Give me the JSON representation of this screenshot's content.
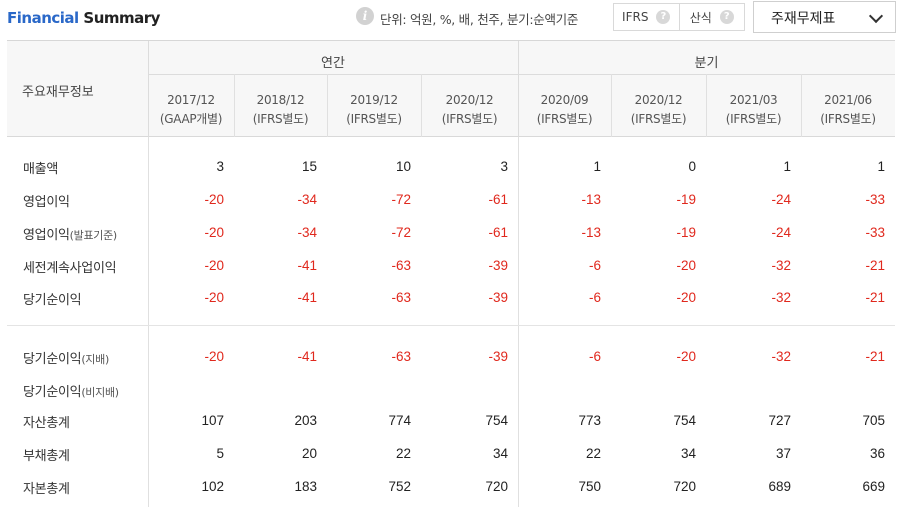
{
  "header": {
    "title_part1": "Financial",
    "title_part2": " Summary",
    "info_icon": "info-icon",
    "unit_text": "단위: 억원, %, 배, 천주, 분기:순액기준",
    "toggle": [
      {
        "label": "IFRS",
        "help": "?"
      },
      {
        "label": "산식",
        "help": "?"
      }
    ],
    "dropdown_label": "주재무제표"
  },
  "table": {
    "corner_label": "주요재무정보",
    "group_annual": "연간",
    "group_quarter": "분기",
    "columns": [
      {
        "date": "2017/12",
        "std": "(GAAP개별)"
      },
      {
        "date": "2018/12",
        "std": "(IFRS별도)"
      },
      {
        "date": "2019/12",
        "std": "(IFRS별도)"
      },
      {
        "date": "2020/12",
        "std": "(IFRS별도)"
      },
      {
        "date": "2020/09",
        "std": "(IFRS별도)"
      },
      {
        "date": "2020/12",
        "std": "(IFRS별도)"
      },
      {
        "date": "2021/03",
        "std": "(IFRS별도)"
      },
      {
        "date": "2021/06",
        "std": "(IFRS별도)"
      }
    ],
    "rows": [
      {
        "label": "매출액",
        "sub": "",
        "values": [
          "3",
          "15",
          "10",
          "3",
          "1",
          "0",
          "1",
          "1"
        ]
      },
      {
        "label": "영업이익",
        "sub": "",
        "values": [
          "-20",
          "-34",
          "-72",
          "-61",
          "-13",
          "-19",
          "-24",
          "-33"
        ]
      },
      {
        "label": "영업이익",
        "sub": "(발표기준)",
        "values": [
          "-20",
          "-34",
          "-72",
          "-61",
          "-13",
          "-19",
          "-24",
          "-33"
        ]
      },
      {
        "label": "세전계속사업이익",
        "sub": "",
        "values": [
          "-20",
          "-41",
          "-63",
          "-39",
          "-6",
          "-20",
          "-32",
          "-21"
        ]
      },
      {
        "label": "당기순이익",
        "sub": "",
        "values": [
          "-20",
          "-41",
          "-63",
          "-39",
          "-6",
          "-20",
          "-32",
          "-21"
        ]
      },
      {
        "label": "당기순이익",
        "sub": "(지배)",
        "values": [
          "-20",
          "-41",
          "-63",
          "-39",
          "-6",
          "-20",
          "-32",
          "-21"
        ]
      },
      {
        "label": "당기순이익",
        "sub": "(비지배)",
        "values": [
          "",
          "",
          "",
          "",
          "",
          "",
          "",
          ""
        ]
      },
      {
        "label": "자산총계",
        "sub": "",
        "values": [
          "107",
          "203",
          "774",
          "754",
          "773",
          "754",
          "727",
          "705"
        ]
      },
      {
        "label": "부채총계",
        "sub": "",
        "values": [
          "5",
          "20",
          "22",
          "34",
          "22",
          "34",
          "37",
          "36"
        ]
      },
      {
        "label": "자본총계",
        "sub": "",
        "values": [
          "102",
          "183",
          "752",
          "720",
          "750",
          "720",
          "689",
          "669"
        ]
      }
    ]
  },
  "colors": {
    "negative": "#e0281d",
    "brand_blue": "#2a68c8"
  }
}
